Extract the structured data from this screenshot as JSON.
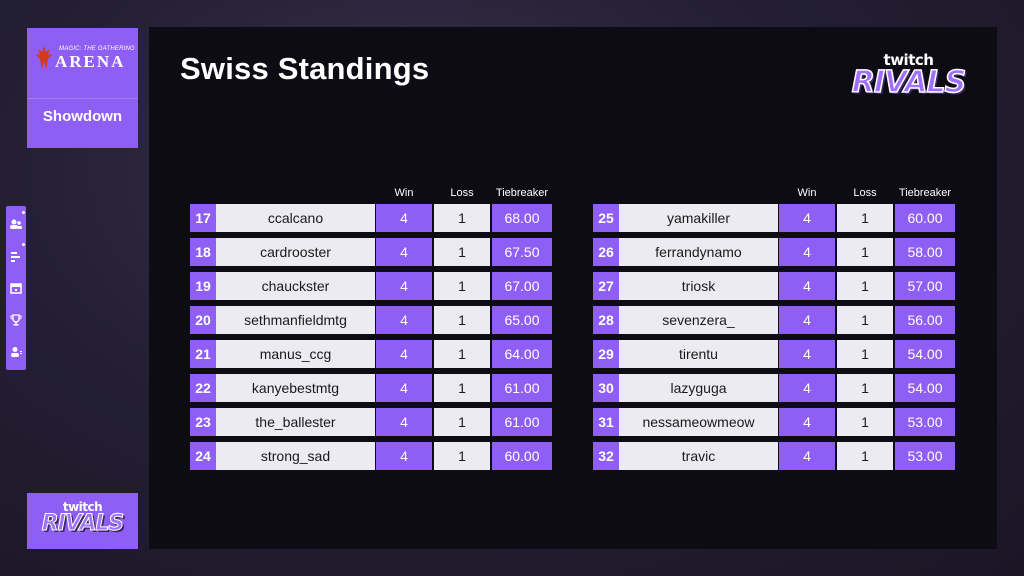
{
  "branding": {
    "mtg_small": "MAGIC: THE GATHERING",
    "mtg_arena": "ARENA",
    "showdown": "Showdown",
    "twitch": "twitch",
    "rivals": "RIVALS"
  },
  "page": {
    "title": "Swiss Standings"
  },
  "table_headers": {
    "win": "Win",
    "loss": "Loss",
    "tiebreaker": "Tiebreaker"
  },
  "left_table": [
    {
      "rank": "17",
      "name": "ccalcano",
      "win": "4",
      "loss": "1",
      "tiebreaker": "68.00"
    },
    {
      "rank": "18",
      "name": "cardrooster",
      "win": "4",
      "loss": "1",
      "tiebreaker": "67.50"
    },
    {
      "rank": "19",
      "name": "chauckster",
      "win": "4",
      "loss": "1",
      "tiebreaker": "67.00"
    },
    {
      "rank": "20",
      "name": "sethmanfieldmtg",
      "win": "4",
      "loss": "1",
      "tiebreaker": "65.00"
    },
    {
      "rank": "21",
      "name": "manus_ccg",
      "win": "4",
      "loss": "1",
      "tiebreaker": "64.00"
    },
    {
      "rank": "22",
      "name": "kanyebestmtg",
      "win": "4",
      "loss": "1",
      "tiebreaker": "61.00"
    },
    {
      "rank": "23",
      "name": "the_ballester",
      "win": "4",
      "loss": "1",
      "tiebreaker": "61.00"
    },
    {
      "rank": "24",
      "name": "strong_sad",
      "win": "4",
      "loss": "1",
      "tiebreaker": "60.00"
    }
  ],
  "right_table": [
    {
      "rank": "25",
      "name": "yamakiller",
      "win": "4",
      "loss": "1",
      "tiebreaker": "60.00"
    },
    {
      "rank": "26",
      "name": "ferrandynamo",
      "win": "4",
      "loss": "1",
      "tiebreaker": "58.00"
    },
    {
      "rank": "27",
      "name": "triosk",
      "win": "4",
      "loss": "1",
      "tiebreaker": "57.00"
    },
    {
      "rank": "28",
      "name": "sevenzera_",
      "win": "4",
      "loss": "1",
      "tiebreaker": "56.00"
    },
    {
      "rank": "29",
      "name": "tirentu",
      "win": "4",
      "loss": "1",
      "tiebreaker": "54.00"
    },
    {
      "rank": "30",
      "name": "lazyguga",
      "win": "4",
      "loss": "1",
      "tiebreaker": "54.00"
    },
    {
      "rank": "31",
      "name": "nessameowmeow",
      "win": "4",
      "loss": "1",
      "tiebreaker": "53.00"
    },
    {
      "rank": "32",
      "name": "travic",
      "win": "4",
      "loss": "1",
      "tiebreaker": "53.00"
    }
  ],
  "side_rail_icons": [
    "players-icon",
    "standings-icon",
    "calendar-icon",
    "trophy-icon",
    "profile-icon"
  ],
  "colors": {
    "accent": "#8f5ff5",
    "cell_light": "#ecebf2",
    "panel": "#0d0b13"
  }
}
